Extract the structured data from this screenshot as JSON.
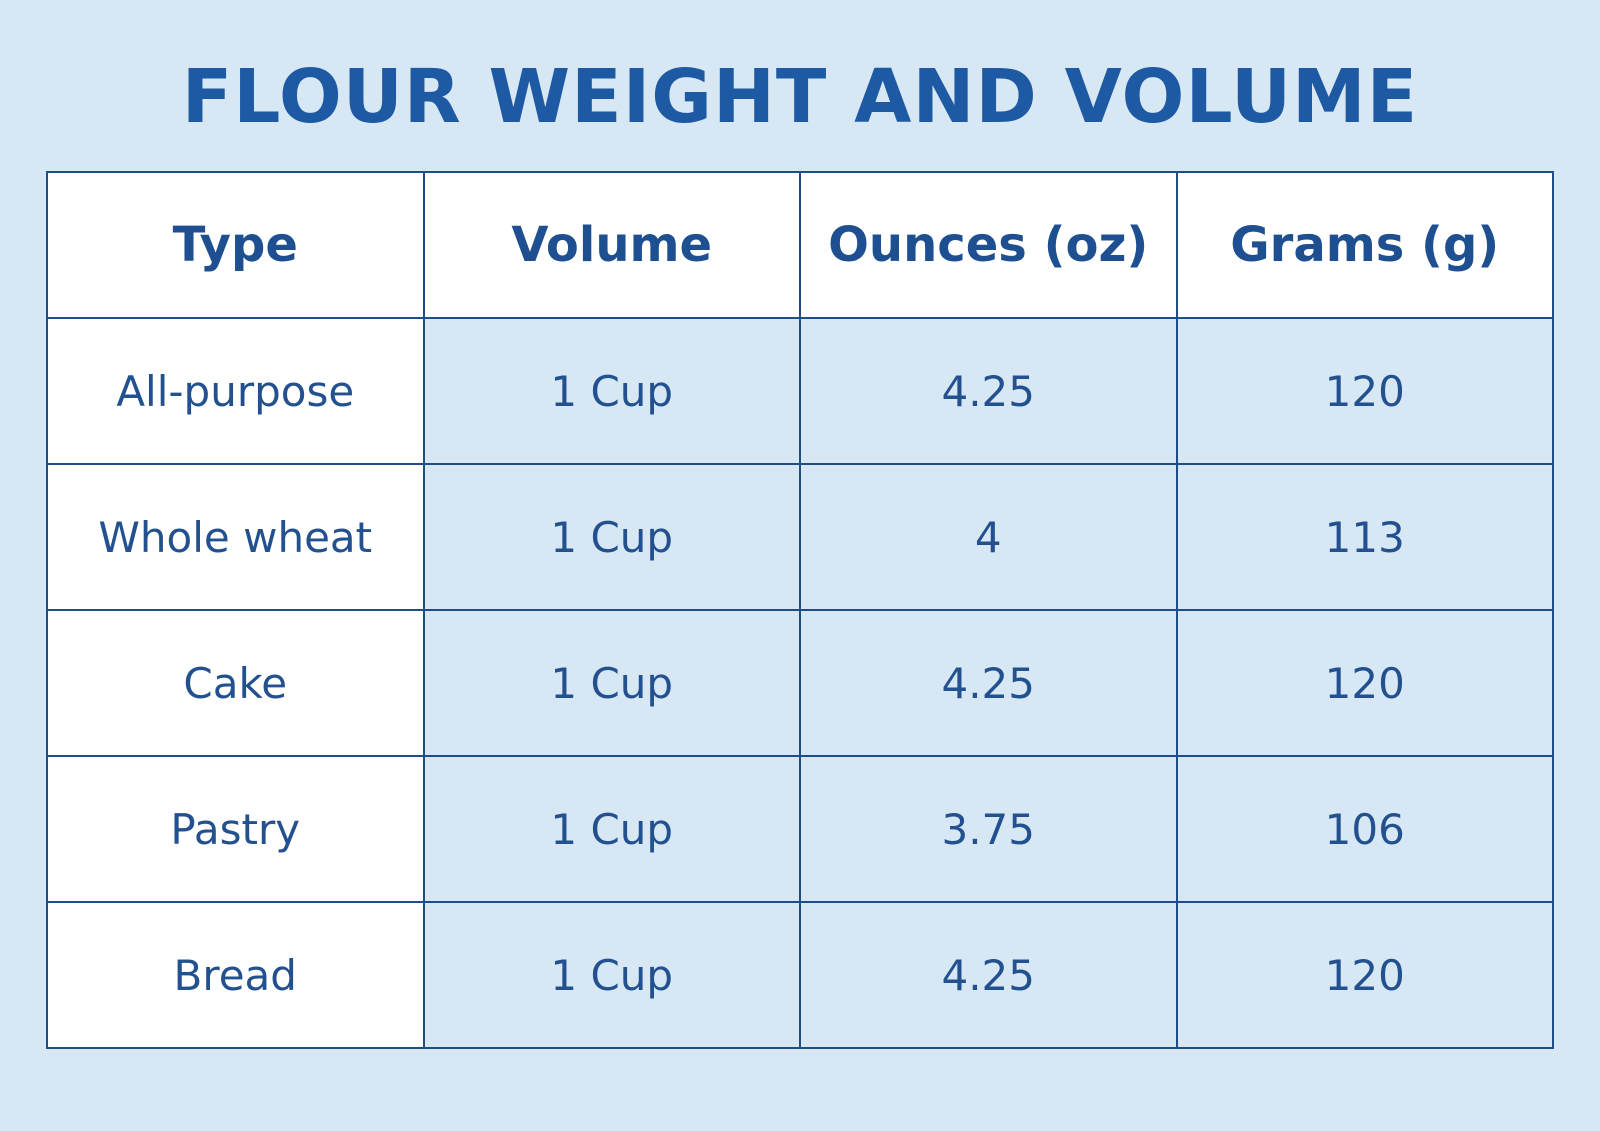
{
  "title": "FLOUR WEIGHT AND VOLUME",
  "table": {
    "headers": [
      "Type",
      "Volume",
      "Ounces (oz)",
      "Grams (g)"
    ],
    "rows": [
      {
        "type": "All-purpose",
        "volume": "1 Cup",
        "ounces": "4.25",
        "grams": "120"
      },
      {
        "type": "Whole wheat",
        "volume": "1 Cup",
        "ounces": "4",
        "grams": "113"
      },
      {
        "type": "Cake",
        "volume": "1 Cup",
        "ounces": "4.25",
        "grams": "120"
      },
      {
        "type": "Pastry",
        "volume": "1 Cup",
        "ounces": "3.75",
        "grams": "106"
      },
      {
        "type": "Bread",
        "volume": "1 Cup",
        "ounces": "4.25",
        "grams": "120"
      }
    ]
  },
  "colors": {
    "background": "#d7e8f4",
    "title": "#1d5aa3",
    "text": "#1d4f91",
    "border": "#1f4d8a",
    "header_background": "#ffffff",
    "type_column_background": "#ffffff"
  }
}
